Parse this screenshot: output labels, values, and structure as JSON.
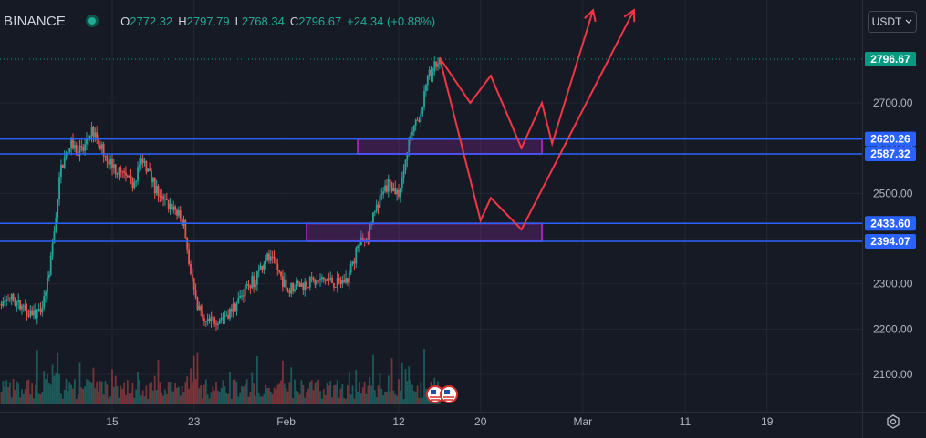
{
  "header": {
    "exchange": "BINANCE",
    "open_label": "O",
    "open": "2772.32",
    "high_label": "H",
    "high": "2797.79",
    "low_label": "L",
    "low": "2768.34",
    "close_label": "C",
    "close": "2796.67",
    "change": "+24.34 (+0.88%)",
    "currency_button": "USDT",
    "settings_icon": "settings-icon"
  },
  "colors": {
    "background": "#161a25",
    "up": "#26a69a",
    "down": "#ef5350",
    "level_line": "#2962ff",
    "zone_border": "#9c27b0",
    "zone_fill": "rgba(156,39,176,0.25)",
    "projection": "#f23645",
    "last_price_badge": "#089981",
    "level_badge": "#2962ff"
  },
  "chart_data": {
    "type": "candlestick",
    "symbol_exchange": "BINANCE",
    "currency": "USDT",
    "x_ticks": [
      "15",
      "23",
      "Feb",
      "12",
      "20",
      "Mar",
      "11",
      "19"
    ],
    "y_ticks": [
      2100,
      2200,
      2300,
      2400,
      2500,
      2600,
      2700
    ],
    "ylim": [
      2040,
      2905
    ],
    "grid": true,
    "last_price": 2796.67,
    "last_price_label": "2796.67",
    "levels": [
      {
        "value": 2620.26,
        "label": "2620.26"
      },
      {
        "value": 2587.32,
        "label": "2587.32"
      },
      {
        "value": 2433.6,
        "label": "2433.60"
      },
      {
        "value": 2394.07,
        "label": "2394.07"
      }
    ],
    "zones": [
      {
        "top": 2620.26,
        "bottom": 2587.32,
        "from_date": "2024-02-08",
        "to_date": "2024-02-26"
      },
      {
        "top": 2433.6,
        "bottom": 2394.07,
        "from_date": "2024-02-03",
        "to_date": "2024-02-26"
      }
    ],
    "price_path": [
      {
        "date": "2024-01-01",
        "close": 2320
      },
      {
        "date": "2024-01-03",
        "close": 2240
      },
      {
        "date": "2024-01-05",
        "close": 2270
      },
      {
        "date": "2024-01-06",
        "close": 2250
      },
      {
        "date": "2024-01-08",
        "close": 2230
      },
      {
        "date": "2024-01-09",
        "close": 2350
      },
      {
        "date": "2024-01-10",
        "close": 2560
      },
      {
        "date": "2024-01-11",
        "close": 2610
      },
      {
        "date": "2024-01-12",
        "close": 2590
      },
      {
        "date": "2024-01-13",
        "close": 2640
      },
      {
        "date": "2024-01-14",
        "close": 2600
      },
      {
        "date": "2024-01-15",
        "close": 2560
      },
      {
        "date": "2024-01-17",
        "close": 2520
      },
      {
        "date": "2024-01-18",
        "close": 2580
      },
      {
        "date": "2024-01-19",
        "close": 2520
      },
      {
        "date": "2024-01-20",
        "close": 2480
      },
      {
        "date": "2024-01-21",
        "close": 2470
      },
      {
        "date": "2024-01-22",
        "close": 2430
      },
      {
        "date": "2024-01-23",
        "close": 2280
      },
      {
        "date": "2024-01-24",
        "close": 2210
      },
      {
        "date": "2024-01-26",
        "close": 2230
      },
      {
        "date": "2024-01-27",
        "close": 2250
      },
      {
        "date": "2024-01-28",
        "close": 2290
      },
      {
        "date": "2024-01-29",
        "close": 2310
      },
      {
        "date": "2024-01-30",
        "close": 2360
      },
      {
        "date": "2024-01-31",
        "close": 2340
      },
      {
        "date": "2024-02-01",
        "close": 2290
      },
      {
        "date": "2024-02-03",
        "close": 2300
      },
      {
        "date": "2024-02-05",
        "close": 2310
      },
      {
        "date": "2024-02-06",
        "close": 2300
      },
      {
        "date": "2024-02-07",
        "close": 2310
      },
      {
        "date": "2024-02-08",
        "close": 2380
      },
      {
        "date": "2024-02-09",
        "close": 2410
      },
      {
        "date": "2024-02-10",
        "close": 2480
      },
      {
        "date": "2024-02-11",
        "close": 2520
      },
      {
        "date": "2024-02-12",
        "close": 2500
      },
      {
        "date": "2024-02-13",
        "close": 2610
      },
      {
        "date": "2024-02-14",
        "close": 2670
      },
      {
        "date": "2024-02-15",
        "close": 2760
      },
      {
        "date": "2024-02-16",
        "close": 2796.67
      }
    ],
    "projection_paths": [
      [
        {
          "date": "2024-02-16",
          "value": 2800
        },
        {
          "date": "2024-02-19",
          "value": 2700
        },
        {
          "date": "2024-02-21",
          "value": 2760
        },
        {
          "date": "2024-02-24",
          "value": 2600
        },
        {
          "date": "2024-02-26",
          "value": 2700
        },
        {
          "date": "2024-02-27",
          "value": 2610
        },
        {
          "date": "2024-03-02",
          "value": 2905
        }
      ],
      [
        {
          "date": "2024-02-16",
          "value": 2800
        },
        {
          "date": "2024-02-20",
          "value": 2440
        },
        {
          "date": "2024-02-21",
          "value": 2490
        },
        {
          "date": "2024-02-24",
          "value": 2420
        },
        {
          "date": "2024-03-06",
          "value": 2905
        }
      ]
    ]
  }
}
